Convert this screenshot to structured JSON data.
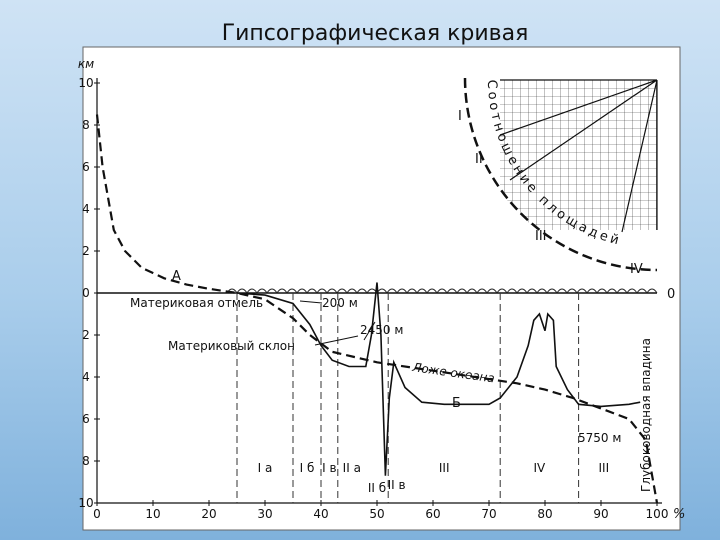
{
  "chart_data": {
    "type": "line",
    "title": "Гипсографическая кривая",
    "ylabel": "км",
    "xlabel": "%",
    "xlim": [
      0,
      100
    ],
    "xticks": [
      0,
      10,
      20,
      30,
      40,
      50,
      60,
      70,
      80,
      90,
      100
    ],
    "ylim": [
      -10,
      10
    ],
    "yticks": [
      10,
      8,
      6,
      4,
      2,
      0,
      {
        "value": -2,
        "label": "2"
      },
      {
        "value": -4,
        "label": "4"
      },
      {
        "value": -6,
        "label": "6"
      },
      {
        "value": -8,
        "label": "8"
      },
      {
        "value": -10,
        "label": "10"
      }
    ],
    "zero_label": "0",
    "series": [
      {
        "name": "А",
        "color": "#111111",
        "dashed": true,
        "x": [
          0,
          1,
          2,
          3,
          5,
          8,
          12,
          16,
          20,
          25,
          30,
          35,
          38,
          42,
          50,
          60,
          70,
          75,
          80,
          85,
          90,
          95,
          98,
          100
        ],
        "values": [
          8.5,
          6,
          4.5,
          3,
          2,
          1.2,
          0.7,
          0.4,
          0.2,
          0,
          -0.3,
          -1.2,
          -2,
          -2.8,
          -3.3,
          -3.7,
          -4.1,
          -4.3,
          -4.6,
          -5,
          -5.5,
          -6,
          -7,
          -10
        ]
      },
      {
        "name": "Б",
        "color": "#111111",
        "dashed": false,
        "x": [
          25,
          30,
          35,
          38,
          40,
          42,
          45,
          48,
          49,
          50,
          50.7,
          51.5,
          52.2,
          53,
          55,
          58,
          62,
          70,
          72,
          75,
          77,
          78,
          79,
          80,
          80.5,
          81.5,
          82,
          84,
          86,
          90,
          95,
          97
        ],
        "values": [
          0,
          -0.1,
          -0.5,
          -1.5,
          -2.5,
          -3.2,
          -3.5,
          -3.5,
          -2,
          0.5,
          -2,
          -8.7,
          -5,
          -3.3,
          -4.5,
          -5.2,
          -5.3,
          -5.3,
          -5,
          -4,
          -2.5,
          -1.3,
          -1,
          -1.8,
          -1,
          -1.3,
          -3.5,
          -4.6,
          -5.3,
          -5.4,
          -5.3,
          -5.2
        ]
      }
    ],
    "zone_boundaries": [
      25,
      35,
      40,
      43,
      52,
      72,
      86
    ],
    "zone_labels": [
      "I а",
      "I б",
      "I в",
      "II а",
      "II б",
      "II в",
      "III",
      "IV",
      "III"
    ],
    "annotations": [
      "Материковая отмель",
      "200 м",
      "2450 м",
      "Материковый склон",
      "Ложе океана",
      "5750 м",
      "Глубоководная впадина"
    ],
    "inset": {
      "title": "Соотношение площадей",
      "labels": [
        "I",
        "II",
        "III",
        "IV"
      ]
    }
  }
}
